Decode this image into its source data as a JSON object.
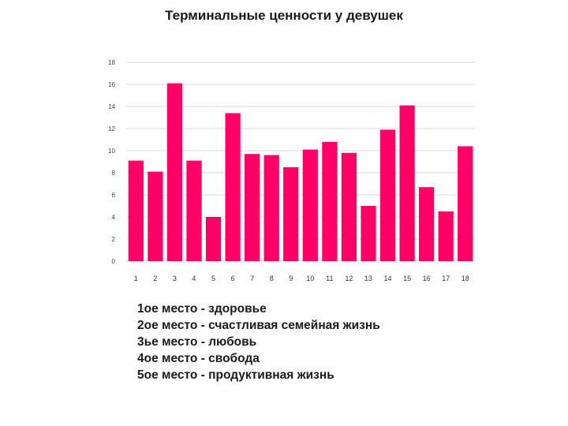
{
  "title": "Терминальные ценности у девушек",
  "chart_data": {
    "type": "bar",
    "title": "",
    "xlabel": "",
    "ylabel": "",
    "categories": [
      "1",
      "2",
      "3",
      "4",
      "5",
      "6",
      "7",
      "8",
      "9",
      "10",
      "11",
      "12",
      "13",
      "14",
      "15",
      "16",
      "17",
      "18"
    ],
    "values": [
      9.1,
      8.1,
      16.1,
      9.1,
      4.0,
      13.4,
      9.7,
      9.6,
      8.5,
      10.1,
      10.8,
      9.8,
      5.0,
      11.9,
      14.1,
      6.7,
      4.5,
      10.4
    ],
    "ylim": [
      0,
      18
    ],
    "yticks": [
      "0",
      "2",
      "4",
      "6",
      "8",
      "10",
      "12",
      "14",
      "16",
      "18"
    ],
    "grid": true,
    "bar_color": "#ff0066",
    "grid_color": "#d9d9d9"
  },
  "notes": [
    "1ое место - здоровье",
    "2ое место - счастливая семейная жизнь",
    "3ье место - любовь",
    "4ое место - свобода",
    "5ое место - продуктивная жизнь"
  ]
}
